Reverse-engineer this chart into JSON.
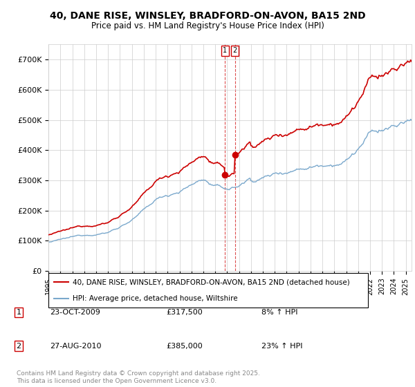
{
  "title": "40, DANE RISE, WINSLEY, BRADFORD-ON-AVON, BA15 2ND",
  "subtitle": "Price paid vs. HM Land Registry's House Price Index (HPI)",
  "ylabel_ticks": [
    "£0",
    "£100K",
    "£200K",
    "£300K",
    "£400K",
    "£500K",
    "£600K",
    "£700K"
  ],
  "ytick_values": [
    0,
    100000,
    200000,
    300000,
    400000,
    500000,
    600000,
    700000
  ],
  "ylim": [
    0,
    750000
  ],
  "xlim_start": 1995,
  "xlim_end": 2025.5,
  "transaction1": {
    "date_num": 2009.81,
    "price": 317500,
    "label": "1",
    "date_str": "23-OCT-2009",
    "hpi_change": "8% ↑ HPI"
  },
  "transaction2": {
    "date_num": 2010.65,
    "price": 385000,
    "label": "2",
    "date_str": "27-AUG-2010",
    "hpi_change": "23% ↑ HPI"
  },
  "legend_line1": "40, DANE RISE, WINSLEY, BRADFORD-ON-AVON, BA15 2ND (detached house)",
  "legend_line2": "HPI: Average price, detached house, Wiltshire",
  "footer": "Contains HM Land Registry data © Crown copyright and database right 2025.\nThis data is licensed under the Open Government Licence v3.0.",
  "red_color": "#cc0000",
  "blue_color": "#7aa8cc",
  "background_color": "#ffffff",
  "grid_color": "#cccccc"
}
